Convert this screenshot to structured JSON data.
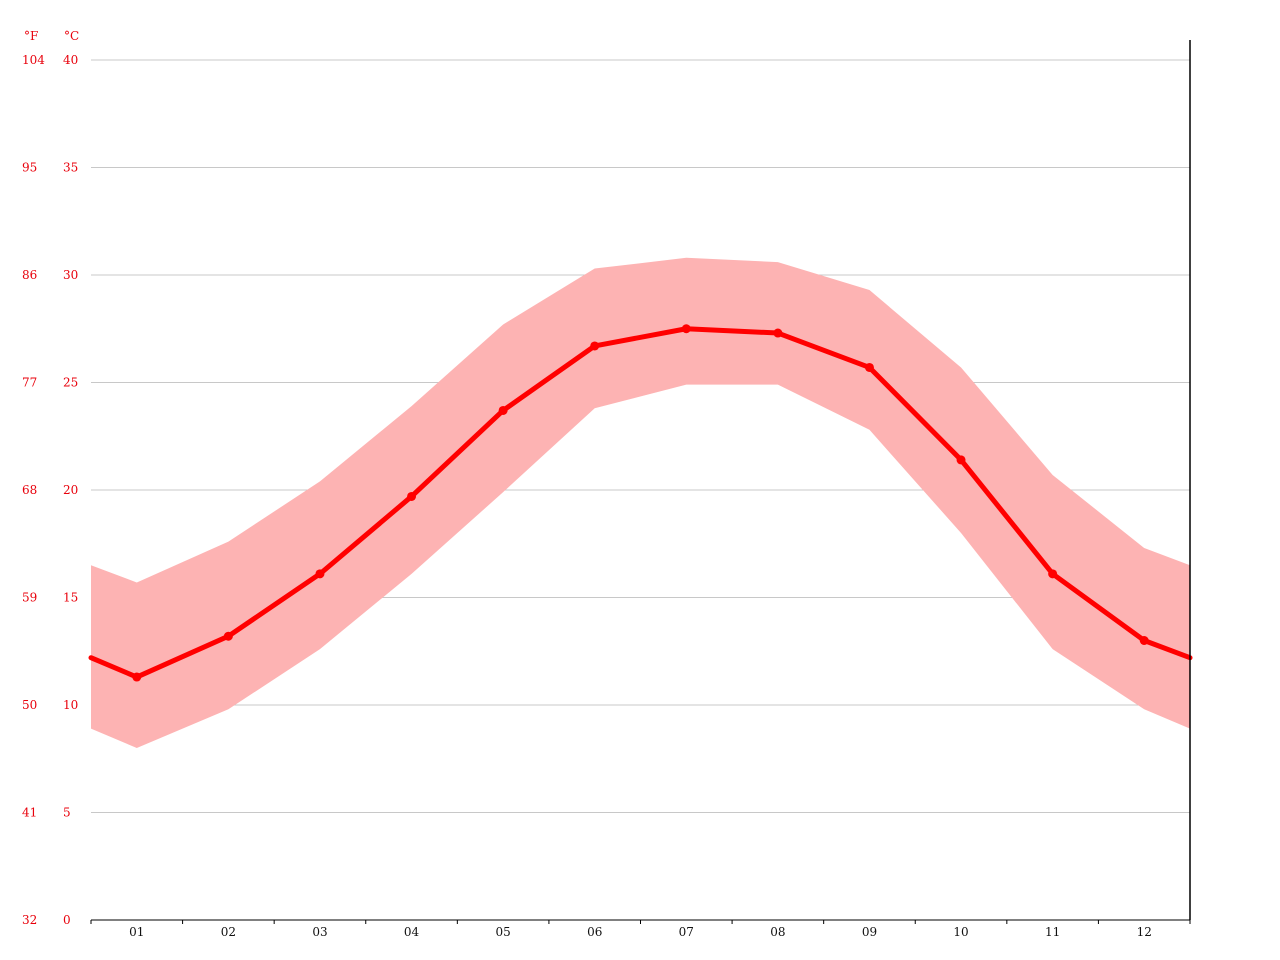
{
  "chart_data": {
    "type": "line",
    "title": "",
    "xlabel": "",
    "ylabel": "",
    "unit_f_label": "°F",
    "unit_c_label": "°C",
    "categories": [
      "01",
      "02",
      "03",
      "04",
      "05",
      "06",
      "07",
      "08",
      "09",
      "10",
      "11",
      "12"
    ],
    "ylim": [
      0,
      40
    ],
    "y_ticks_c": [
      "0",
      "5",
      "10",
      "15",
      "20",
      "25",
      "30",
      "35",
      "40"
    ],
    "y_ticks_f": [
      "32",
      "41",
      "50",
      "59",
      "68",
      "77",
      "86",
      "95",
      "104"
    ],
    "series": [
      {
        "values": [
          11.3,
          13.2,
          16.1,
          19.7,
          23.7,
          26.7,
          27.5,
          27.3,
          25.7,
          21.4,
          16.1,
          13.0
        ],
        "color": "#ff0000"
      }
    ],
    "band": {
      "min": [
        8.0,
        9.8,
        12.6,
        16.1,
        19.9,
        23.8,
        24.9,
        24.9,
        22.8,
        18.0,
        12.6,
        9.8
      ],
      "max": [
        15.7,
        17.6,
        20.4,
        23.9,
        27.7,
        30.3,
        30.8,
        30.6,
        29.3,
        25.7,
        20.7,
        17.3
      ],
      "color": "#fdb3b3"
    },
    "edge_values": {
      "start": {
        "mean": 12.2,
        "min": 8.9,
        "max": 16.5
      },
      "end": {
        "mean": 12.2,
        "min": 8.9,
        "max": 16.5
      }
    },
    "grid": true,
    "colors": {
      "tick_label": "#e8000b",
      "axis": "#000000",
      "grid": "#c8c8c8"
    }
  }
}
